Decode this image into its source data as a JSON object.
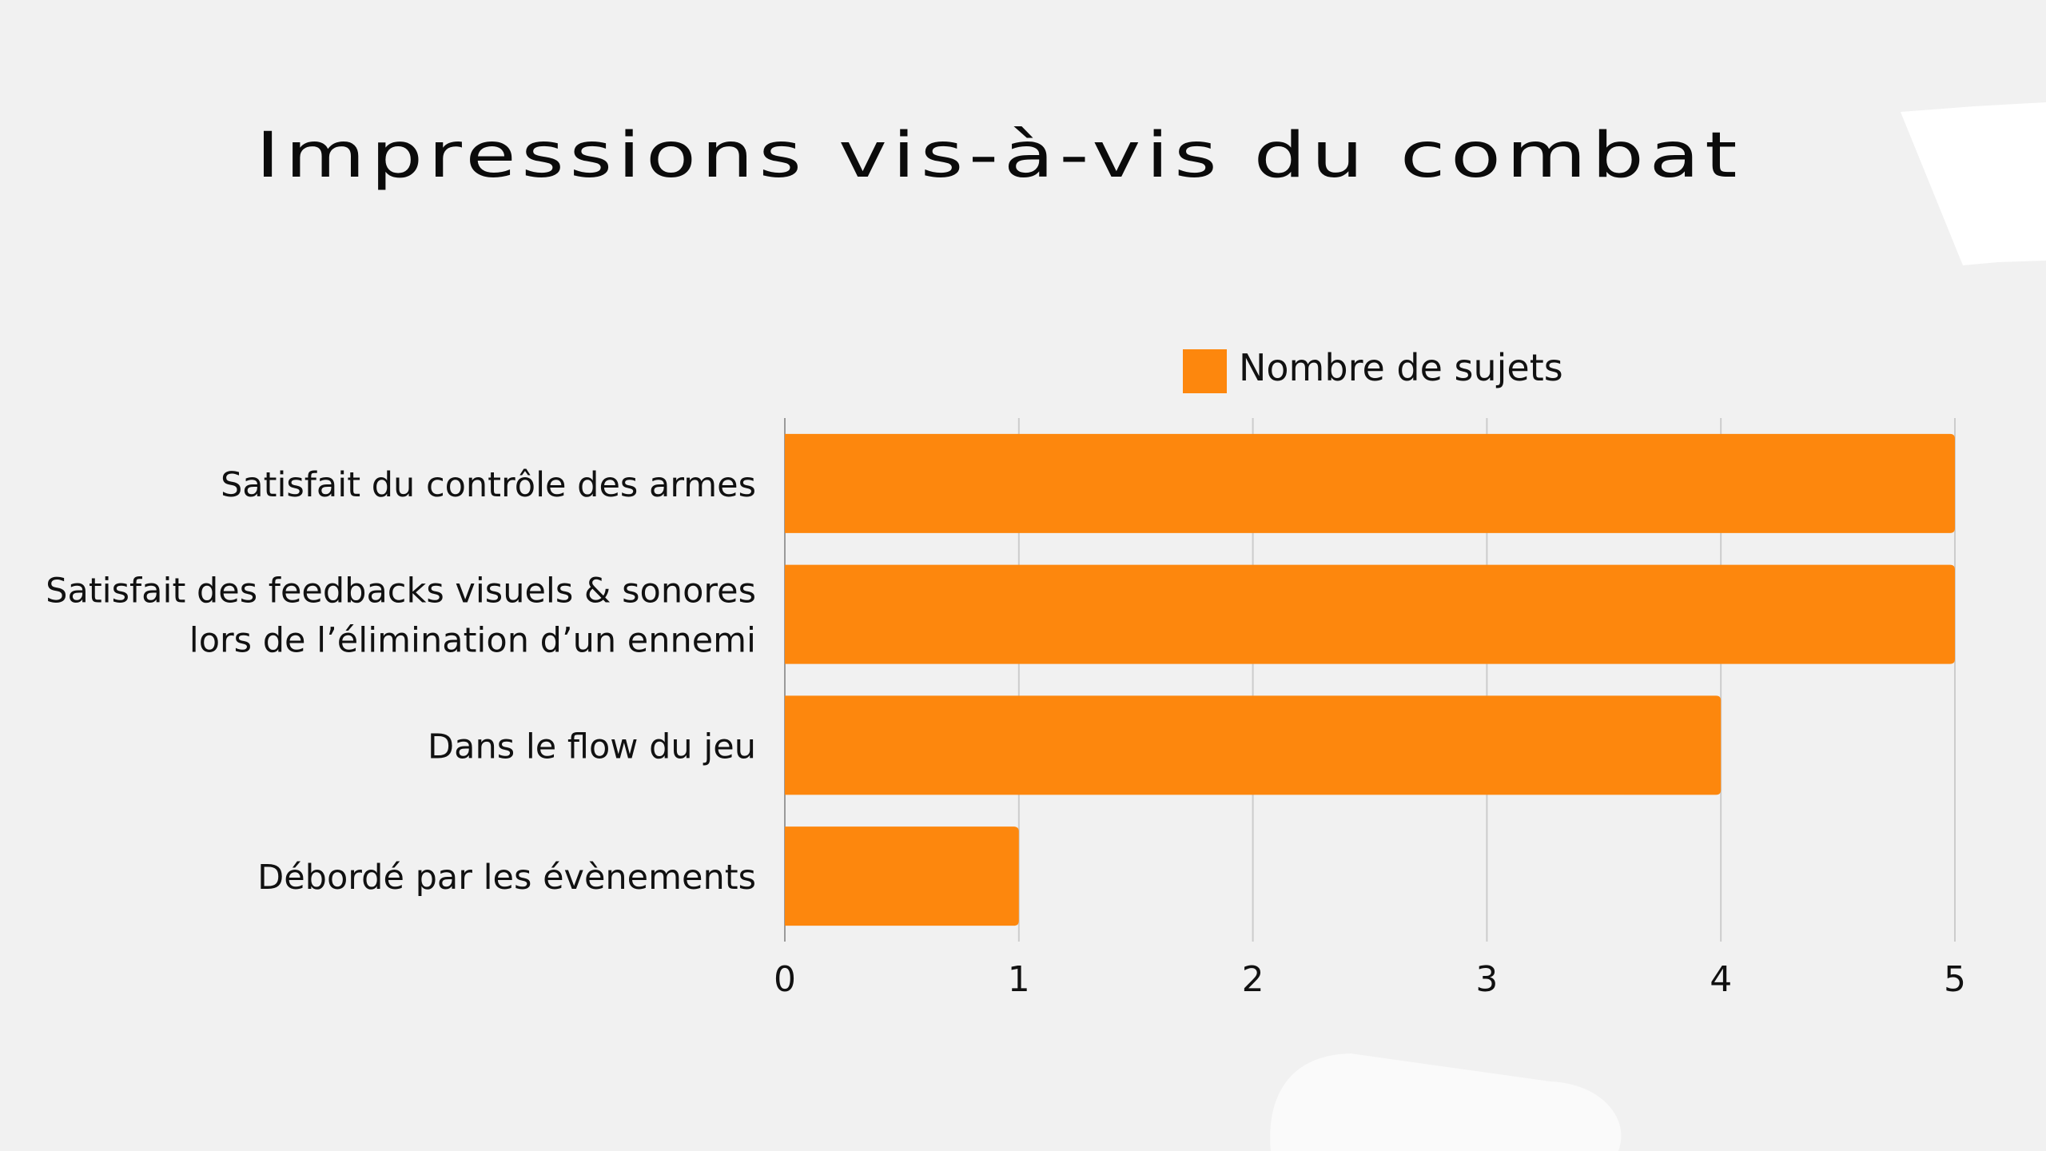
{
  "slide": {
    "title": "Impressions vis-à-vis du combat"
  },
  "chart_data": {
    "type": "bar",
    "orientation": "horizontal",
    "categories": [
      [
        "Satisfait du contrôle des armes"
      ],
      [
        "Satisfait des feedbacks visuels & sonores",
        "lors de l’élimination d’un ennemi"
      ],
      [
        "Dans le flow du jeu"
      ],
      [
        "Débordé par les évènements"
      ]
    ],
    "series": [
      {
        "name": "Nombre de sujets",
        "values": [
          5,
          5,
          4,
          1
        ],
        "color": "#fd870d"
      }
    ],
    "xlim": [
      0,
      5
    ],
    "xticks": [
      "0",
      "1",
      "2",
      "3",
      "4",
      "5"
    ],
    "grid": true,
    "legend": "top"
  },
  "colors": {
    "background": "#f1f1f1",
    "bar": "#fd870d",
    "grid": "#cccccc",
    "decor": "#ffffff"
  }
}
